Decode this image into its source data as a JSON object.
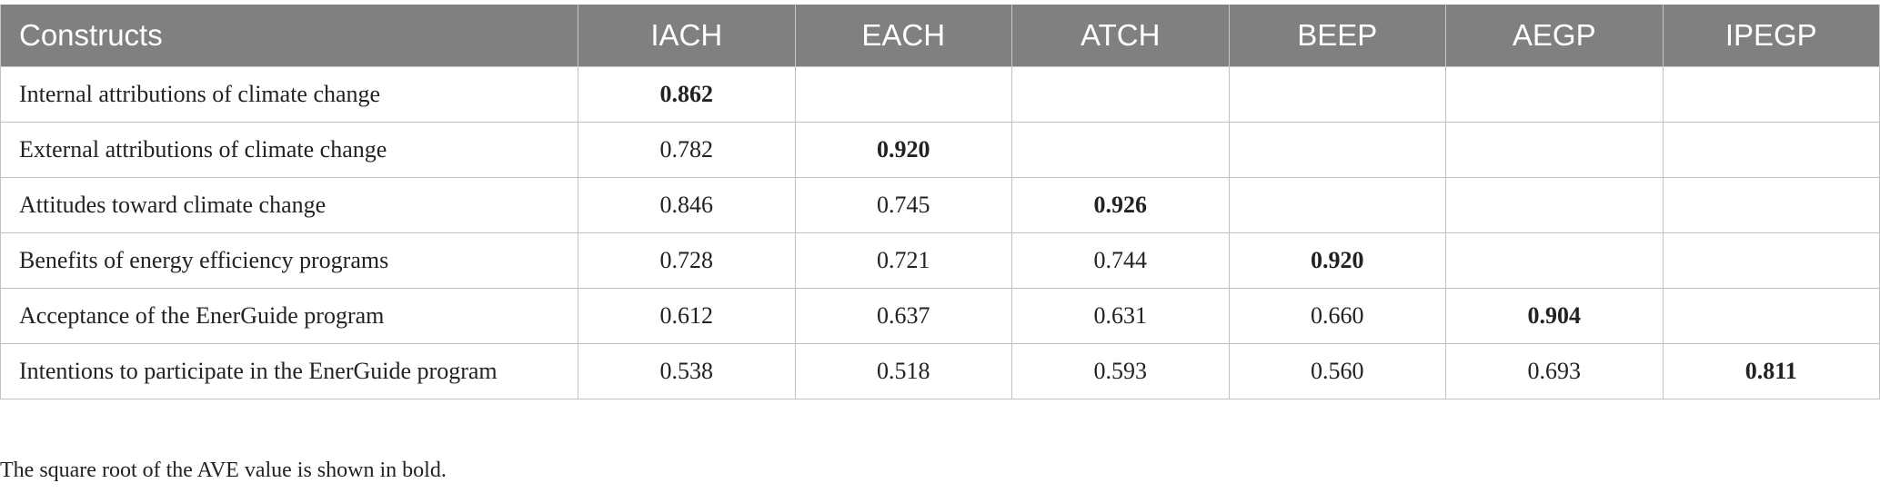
{
  "table": {
    "header": [
      "Constructs",
      "IACH",
      "EACH",
      "ATCH",
      "BEEP",
      "AEGP",
      "IPEGP"
    ],
    "rows": [
      {
        "label": "Internal attributions of climate change",
        "values": [
          "0.862"
        ]
      },
      {
        "label": "External attributions of climate change",
        "values": [
          "0.782",
          "0.920"
        ]
      },
      {
        "label": "Attitudes toward climate change",
        "values": [
          "0.846",
          "0.745",
          "0.926"
        ]
      },
      {
        "label": "Benefits of energy efficiency programs",
        "values": [
          "0.728",
          "0.721",
          "0.744",
          "0.920"
        ]
      },
      {
        "label": "Acceptance of the EnerGuide program",
        "values": [
          "0.612",
          "0.637",
          "0.631",
          "0.660",
          "0.904"
        ]
      },
      {
        "label": "Intentions to participate in the EnerGuide program",
        "values": [
          "0.538",
          "0.518",
          "0.593",
          "0.560",
          "0.693",
          "0.811"
        ]
      }
    ]
  },
  "footnote": "The square root of the AVE value is shown in bold."
}
